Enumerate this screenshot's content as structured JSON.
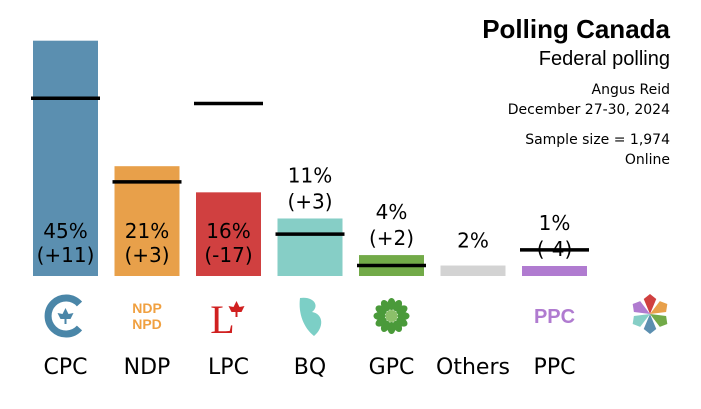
{
  "header": {
    "title": "Polling Canada",
    "subtitle": "Federal polling",
    "pollster": "Angus Reid",
    "dates": "December 27-30, 2024",
    "sample": "Sample size = 1,974",
    "mode": "Online"
  },
  "chart_data": {
    "type": "bar",
    "title": "Polling Canada",
    "subtitle": "Federal polling",
    "xlabel": "",
    "ylabel": "",
    "ylim": [
      0,
      48
    ],
    "categories": [
      "CPC",
      "NDP",
      "LPC",
      "BQ",
      "GPC",
      "Others",
      "PPC"
    ],
    "series": [
      {
        "values": [
          45,
          21,
          16,
          11,
          4,
          2,
          1
        ]
      }
    ],
    "previous_values": [
      34,
      18,
      33,
      8,
      2,
      null,
      5
    ],
    "value_labels": [
      "45%",
      "21%",
      "16%",
      "11%",
      "4%",
      "2%",
      "1%"
    ],
    "change_labels": [
      "(+11)",
      "(+3)",
      "(-17)",
      "(+3)",
      "(+2)",
      "",
      "(-4)"
    ],
    "label_inside": [
      true,
      true,
      true,
      false,
      false,
      false,
      false
    ],
    "colors": [
      "#5b8fb0",
      "#e8a04a",
      "#d04040",
      "#86cec6",
      "#72aa48",
      "#d3d3d3",
      "#b07bd0"
    ],
    "grid": false,
    "legend": "none",
    "icons": [
      {
        "name": "cpc-logo-icon",
        "text": "",
        "color": "#4a86a8"
      },
      {
        "name": "ndp-logo-icon",
        "text": "NDP NPD",
        "color": "#f0a040"
      },
      {
        "name": "lpc-logo-icon",
        "text": "L",
        "color": "#d02020"
      },
      {
        "name": "bq-logo-icon",
        "text": "",
        "color": "#7ccfc6"
      },
      {
        "name": "gpc-logo-icon",
        "text": "",
        "color": "#4a9a3a"
      },
      {
        "name": "others-icon",
        "text": "",
        "color": "#ffffff"
      },
      {
        "name": "ppc-logo-icon",
        "text": "PPC",
        "color": "#b07bd0"
      }
    ],
    "brand_icon": {
      "name": "polling-canada-logo-icon"
    }
  }
}
